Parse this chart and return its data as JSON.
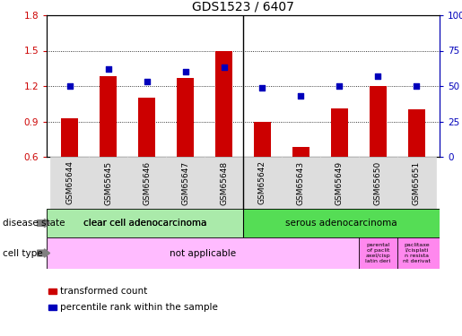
{
  "title": "GDS1523 / 6407",
  "samples": [
    "GSM65644",
    "GSM65645",
    "GSM65646",
    "GSM65647",
    "GSM65648",
    "GSM65642",
    "GSM65643",
    "GSM65649",
    "GSM65650",
    "GSM65651"
  ],
  "transformed_count": [
    0.93,
    1.28,
    1.1,
    1.27,
    1.5,
    0.9,
    0.68,
    1.01,
    1.2,
    1.0
  ],
  "percentile_rank": [
    50,
    62,
    53,
    60,
    63,
    49,
    43,
    50,
    57,
    50
  ],
  "ylim_left": [
    0.6,
    1.8
  ],
  "ylim_right": [
    0,
    100
  ],
  "yticks_left": [
    0.6,
    0.9,
    1.2,
    1.5,
    1.8
  ],
  "yticks_right": [
    0,
    25,
    50,
    75,
    100
  ],
  "bar_color": "#cc0000",
  "dot_color": "#0000bb",
  "bar_width": 0.45,
  "grid_color": "#000000",
  "disease_state_labels": [
    "clear cell adenocarcinoma",
    "serous adenocarcinoma"
  ],
  "cell_type_label_main": "not applicable",
  "cell_type_label_extra1": "parental\nof paclit\naxel/cisp\nlatin deri",
  "cell_type_label_extra2": "paclitaxe\nl/cisplati\nn resista\nnt derivat",
  "cell_type_color_main": "#ffbbff",
  "cell_type_color_extra1": "#ff88ee",
  "cell_type_color_extra2": "#ff88ee",
  "ds_color1": "#aaeaaa",
  "ds_color2": "#55dd55",
  "separator_col": 5,
  "background_color": "#ffffff",
  "tick_label_color_left": "#cc0000",
  "tick_label_color_right": "#0000bb",
  "xtick_bg_color": "#dddddd",
  "legend_red_label": "transformed count",
  "legend_blue_label": "percentile rank within the sample",
  "label_ds": "disease state",
  "label_ct": "cell type"
}
